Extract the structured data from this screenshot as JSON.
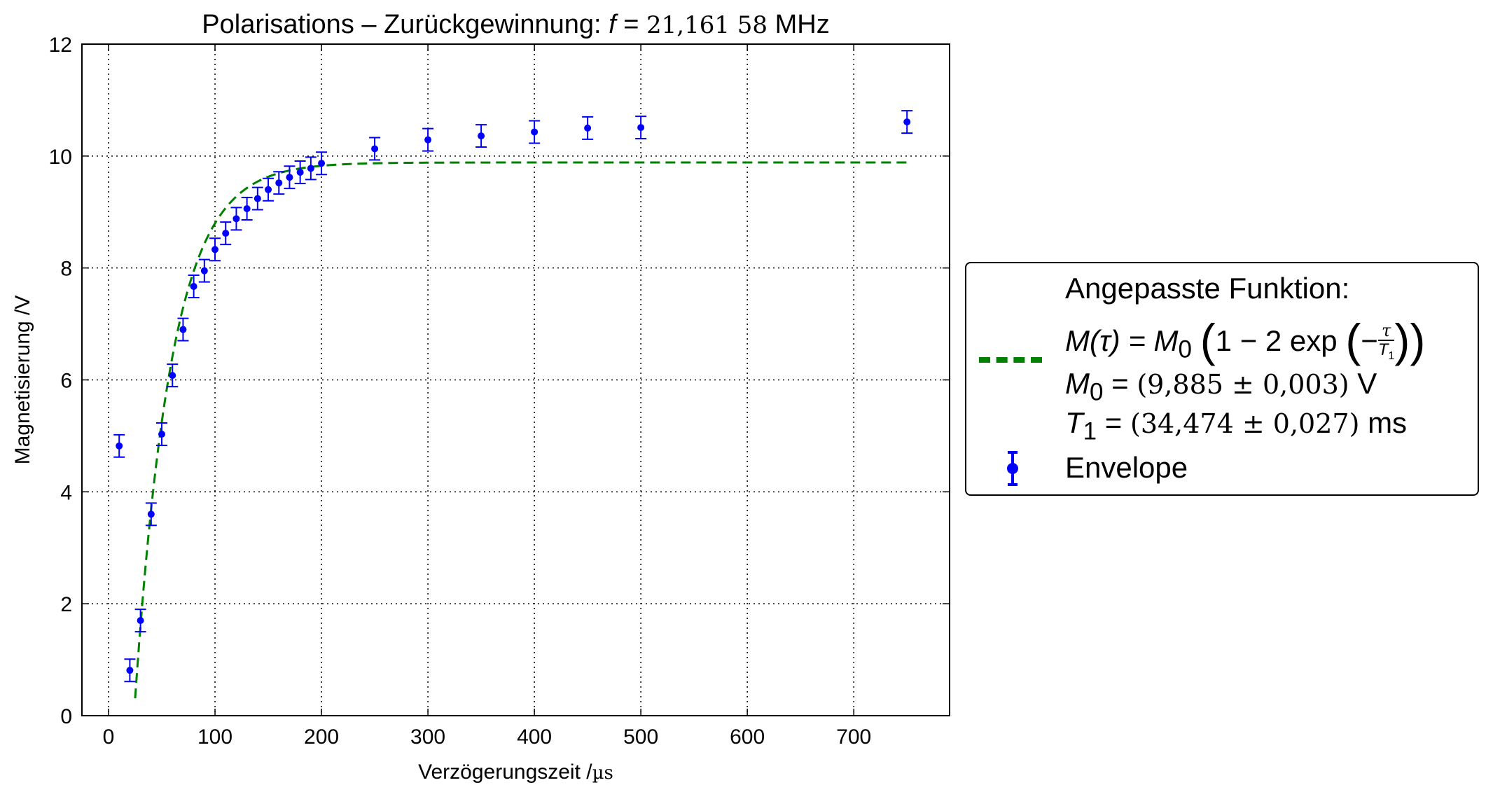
{
  "chart_data": {
    "type": "scatter",
    "title": "Polarisations – Zurückgewinnung: f = 21,161 58 MHz",
    "title_text": "Polarisations – Zurückgewinnung: ",
    "title_var": "f",
    "title_eq": " = ",
    "title_value": "21,161 58",
    "title_unit": " MHz",
    "xlabel_text": "Verzögerungszeit /",
    "xlabel_unit": "µs",
    "ylabel": "Magnetisierung /V",
    "xlim": [
      -25,
      790
    ],
    "ylim": [
      0,
      12
    ],
    "x_ticks": [
      0,
      100,
      200,
      300,
      400,
      500,
      600,
      700
    ],
    "y_ticks": [
      0,
      2,
      4,
      6,
      8,
      10,
      12
    ],
    "grid": true,
    "legend_position": "outside-right",
    "series": [
      {
        "name": "Envelope",
        "color": "#0000ff",
        "marker": "dot",
        "error_y": 0.2,
        "points": [
          {
            "x": 10,
            "y": 4.82
          },
          {
            "x": 20,
            "y": 0.81
          },
          {
            "x": 30,
            "y": 1.7
          },
          {
            "x": 40,
            "y": 3.6
          },
          {
            "x": 50,
            "y": 5.03
          },
          {
            "x": 60,
            "y": 6.08
          },
          {
            "x": 70,
            "y": 6.9
          },
          {
            "x": 80,
            "y": 7.67
          },
          {
            "x": 90,
            "y": 7.95
          },
          {
            "x": 100,
            "y": 8.33
          },
          {
            "x": 110,
            "y": 8.62
          },
          {
            "x": 120,
            "y": 8.88
          },
          {
            "x": 130,
            "y": 9.06
          },
          {
            "x": 140,
            "y": 9.24
          },
          {
            "x": 150,
            "y": 9.4
          },
          {
            "x": 160,
            "y": 9.52
          },
          {
            "x": 170,
            "y": 9.62
          },
          {
            "x": 180,
            "y": 9.71
          },
          {
            "x": 190,
            "y": 9.78
          },
          {
            "x": 200,
            "y": 9.87
          },
          {
            "x": 250,
            "y": 10.13
          },
          {
            "x": 300,
            "y": 10.29
          },
          {
            "x": 350,
            "y": 10.36
          },
          {
            "x": 400,
            "y": 10.43
          },
          {
            "x": 450,
            "y": 10.5
          },
          {
            "x": 500,
            "y": 10.51
          },
          {
            "x": 750,
            "y": 10.61
          }
        ]
      },
      {
        "name": "Angepasste Funktion",
        "color": "#008000",
        "line_style": "dashed",
        "function": "M0*(1-2*exp(-tau/T1))",
        "M0": 9.885,
        "T1": 34.474,
        "x_range": [
          25,
          750
        ]
      }
    ]
  },
  "legend": {
    "heading": "Angepasste Funktion:",
    "formula_lhs": "M(τ) = ",
    "formula_m0": "M",
    "formula_m0_sub": "0",
    "formula_body": "1 − 2 exp",
    "formula_minus": "−",
    "formula_num": "τ",
    "formula_den": "T",
    "formula_den_sub": "1",
    "m0_label": "M",
    "m0_sub": "0",
    "m0_eq": " = ",
    "m0_value": "(9,885 ± 0,003)",
    "m0_unit": " V",
    "t1_label": "T",
    "t1_sub": "1",
    "t1_eq": " = ",
    "t1_value": "(34,474 ± 0,027)",
    "t1_unit": " ms",
    "envelope_label": "Envelope"
  }
}
